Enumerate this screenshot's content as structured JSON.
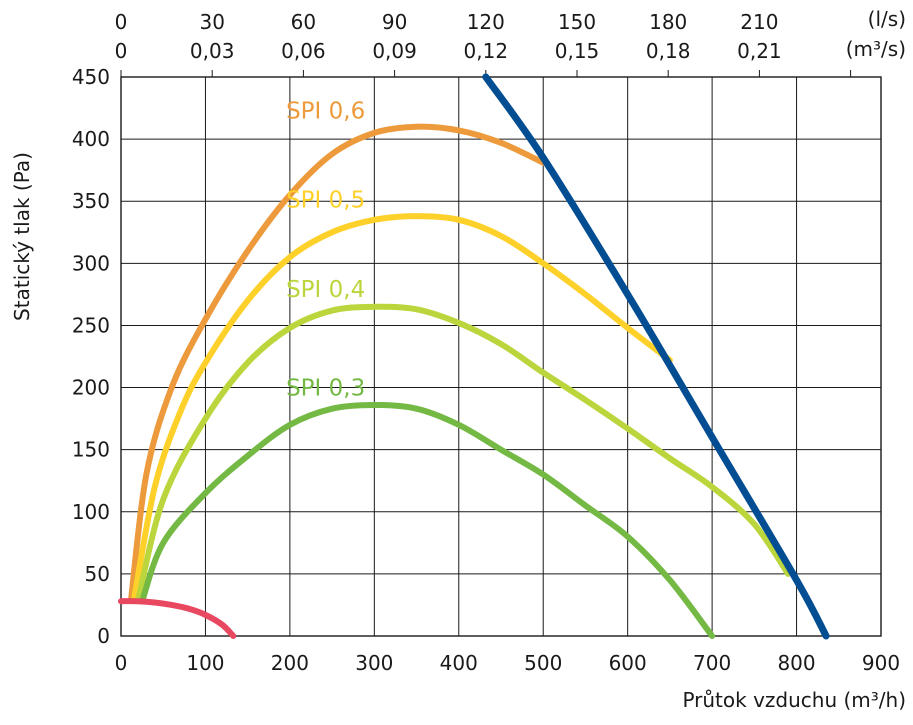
{
  "chart_data": {
    "type": "line",
    "xlabel": "Průtok vzduchu  (m³/h)",
    "ylabel": "Statický tlak (Pa)",
    "xlim": [
      0,
      900
    ],
    "ylim": [
      0,
      450
    ],
    "x_ticks": [
      0,
      100,
      200,
      300,
      400,
      500,
      600,
      700,
      800,
      900
    ],
    "y_ticks": [
      0,
      50,
      100,
      150,
      200,
      250,
      300,
      350,
      400,
      450
    ],
    "x_tick_labels": [
      "0",
      "100",
      "200",
      "300",
      "400",
      "500",
      "600",
      "700",
      "800",
      "900"
    ],
    "y_tick_labels": [
      "0",
      "50",
      "100",
      "150",
      "200",
      "250",
      "300",
      "350",
      "400",
      "450"
    ],
    "grid": true,
    "secondary_x_axes": [
      {
        "unit_label": "(l/s)",
        "ticks_m3h": [
          0,
          108,
          216,
          324,
          432,
          540,
          648,
          756
        ],
        "tick_labels": [
          "0",
          "30",
          "60",
          "90",
          "120",
          "150",
          "180",
          "210"
        ]
      },
      {
        "unit_label": "(m³/s)",
        "ticks_m3h": [
          0,
          108,
          216,
          324,
          432,
          540,
          648,
          756
        ],
        "tick_labels": [
          "0",
          "0,03",
          "0,06",
          "0,09",
          "0,12",
          "0,15",
          "0,18",
          "0,21"
        ]
      }
    ],
    "series": [
      {
        "name": "SPI 0,6",
        "color": "#ed9a3c",
        "x": [
          12,
          30,
          60,
          100,
          150,
          200,
          250,
          300,
          350,
          400,
          450,
          500
        ],
        "y": [
          30,
          130,
          200,
          255,
          310,
          355,
          388,
          405,
          410,
          407,
          397,
          381
        ]
      },
      {
        "name": "SPI 0,5",
        "color": "#fdd02a",
        "x": [
          15,
          40,
          70,
          100,
          150,
          200,
          250,
          300,
          350,
          400,
          450,
          500,
          550,
          600,
          650
        ],
        "y": [
          28,
          120,
          180,
          220,
          270,
          305,
          325,
          335,
          338,
          335,
          322,
          300,
          275,
          248,
          222
        ]
      },
      {
        "name": "SPI 0,4",
        "color": "#bad63c",
        "x": [
          20,
          50,
          100,
          150,
          200,
          250,
          300,
          350,
          400,
          450,
          500,
          550,
          600,
          650,
          700,
          750,
          790
        ],
        "y": [
          28,
          110,
          175,
          220,
          248,
          262,
          265,
          263,
          252,
          235,
          212,
          190,
          167,
          143,
          120,
          90,
          50
        ]
      },
      {
        "name": "SPI 0,3",
        "color": "#73b944",
        "x": [
          25,
          50,
          100,
          150,
          200,
          250,
          300,
          350,
          400,
          450,
          500,
          550,
          600,
          650,
          700
        ],
        "y": [
          28,
          75,
          115,
          145,
          170,
          183,
          186,
          183,
          170,
          150,
          130,
          105,
          80,
          45,
          0
        ]
      },
      {
        "name": "",
        "color": "#e84860",
        "x": [
          0,
          20,
          40,
          60,
          80,
          100,
          120,
          133
        ],
        "y": [
          28,
          28,
          27,
          25,
          22,
          17,
          9,
          0
        ]
      },
      {
        "name": "",
        "color": "#034d92",
        "x": [
          432,
          500,
          600,
          700,
          800,
          835
        ],
        "y": [
          450,
          385,
          275,
          160,
          45,
          0
        ]
      }
    ],
    "series_labels": [
      {
        "text": "SPI 0,6",
        "series": 0,
        "x": 240,
        "y": 420
      },
      {
        "text": "SPI 0,5",
        "series": 1,
        "x": 240,
        "y": 348
      },
      {
        "text": "SPI 0,4",
        "series": 2,
        "x": 240,
        "y": 276
      },
      {
        "text": "SPI 0,3",
        "series": 3,
        "x": 240,
        "y": 197
      }
    ]
  }
}
